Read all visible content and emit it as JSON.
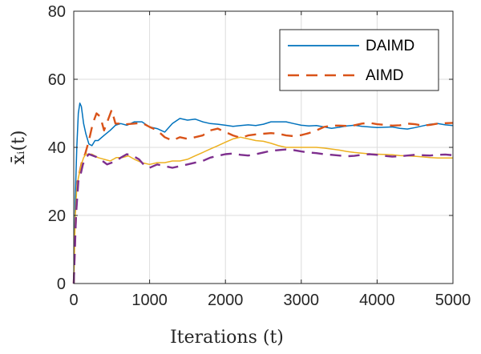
{
  "chart_data": {
    "type": "line",
    "xlabel": "Iterations (t)",
    "ylabel": "x̄ᵢ(t)",
    "xlim": [
      0,
      5000
    ],
    "ylim": [
      0,
      80
    ],
    "xticks": [
      "0",
      "1000",
      "2000",
      "3000",
      "4000",
      "5000"
    ],
    "yticks": [
      "0",
      "20",
      "40",
      "60",
      "80"
    ],
    "grid": true,
    "legend_position": "top-right",
    "legend": [
      {
        "label": "DAIMD",
        "color": "#0072BD",
        "style": "solid"
      },
      {
        "label": "AIMD",
        "color": "#D95319",
        "style": "dashed"
      }
    ],
    "series": [
      {
        "legend_ref": 0,
        "color": "#0072BD",
        "style": "solid",
        "x": [
          0,
          20,
          40,
          60,
          80,
          100,
          130,
          160,
          200,
          240,
          280,
          320,
          400,
          480,
          550,
          620,
          700,
          800,
          900,
          1000,
          1100,
          1200,
          1300,
          1400,
          1500,
          1600,
          1700,
          1800,
          1900,
          2000,
          2100,
          2200,
          2300,
          2400,
          2500,
          2600,
          2700,
          2800,
          2900,
          3000,
          3100,
          3200,
          3300,
          3400,
          3500,
          3600,
          3700,
          3800,
          3900,
          4000,
          4100,
          4200,
          4300,
          4400,
          4500,
          4600,
          4700,
          4800,
          4900,
          5000
        ],
        "y": [
          0,
          25,
          40,
          50,
          53,
          52,
          47,
          44,
          41,
          40.5,
          42,
          42,
          43.5,
          45,
          46.5,
          47,
          46.5,
          47.5,
          47.5,
          46,
          45.5,
          44.5,
          47,
          48.5,
          48,
          48.3,
          47.5,
          47,
          46.8,
          46.5,
          46.2,
          46.4,
          46.6,
          46.4,
          46.8,
          47.5,
          47.5,
          47.5,
          47,
          46.5,
          46.3,
          46.4,
          46,
          45.6,
          45.9,
          46.3,
          46.5,
          46.2,
          46,
          45.8,
          45.9,
          46,
          45.6,
          45.4,
          45.8,
          46.3,
          46.8,
          47,
          46.6,
          46.4
        ]
      },
      {
        "color": "#D95319",
        "style": "dashed",
        "x": [
          0,
          20,
          50,
          80,
          110,
          150,
          200,
          250,
          300,
          350,
          400,
          450,
          500,
          550,
          600,
          650,
          700,
          800,
          900,
          1000,
          1100,
          1200,
          1300,
          1400,
          1500,
          1600,
          1700,
          1800,
          1900,
          2000,
          2100,
          2200,
          2300,
          2400,
          2500,
          2600,
          2700,
          2800,
          2900,
          3000,
          3100,
          3200,
          3300,
          3400,
          3500,
          3600,
          3700,
          3800,
          3900,
          4000,
          4100,
          4200,
          4300,
          4400,
          4500,
          4600,
          4700,
          4800,
          4900,
          5000
        ],
        "y": [
          0,
          15,
          30,
          33,
          36,
          38,
          42,
          47,
          50,
          49,
          45,
          48,
          51,
          47,
          47,
          46.5,
          46.8,
          47,
          47.2,
          46,
          45,
          43,
          42,
          43,
          42.5,
          43,
          43.5,
          45,
          45.5,
          44.5,
          43.5,
          42.8,
          43.5,
          43.8,
          44,
          44.2,
          44,
          43.5,
          43.3,
          43.6,
          44.2,
          45,
          46,
          46.4,
          46.4,
          46.3,
          46.5,
          47,
          47.2,
          46.8,
          46.6,
          46.4,
          46.5,
          47,
          46.8,
          46.4,
          46.6,
          47,
          47.1,
          47.2
        ]
      },
      {
        "color": "#EDB120",
        "style": "solid",
        "x": [
          0,
          20,
          40,
          60,
          80,
          100,
          130,
          160,
          200,
          240,
          280,
          320,
          400,
          480,
          560,
          640,
          720,
          800,
          900,
          1000,
          1100,
          1200,
          1300,
          1400,
          1500,
          1600,
          1700,
          1800,
          1900,
          2000,
          2100,
          2200,
          2300,
          2400,
          2500,
          2600,
          2700,
          2800,
          2900,
          3000,
          3100,
          3200,
          3300,
          3400,
          3500,
          3600,
          3700,
          3800,
          3900,
          4000,
          4100,
          4200,
          4300,
          4400,
          4500,
          4600,
          4700,
          4800,
          4900,
          5000
        ],
        "y": [
          0,
          20,
          28,
          31,
          33,
          35,
          37,
          38,
          38,
          38,
          37.5,
          37,
          36.5,
          36,
          37,
          37,
          37.5,
          36.5,
          35.5,
          35,
          35.5,
          35.5,
          36,
          36,
          36.5,
          37.5,
          38.5,
          39.5,
          40.5,
          41.5,
          42.5,
          43,
          42.5,
          42,
          41.8,
          41.2,
          40.5,
          40,
          40,
          40,
          40,
          40,
          39.8,
          39.5,
          39.2,
          38.8,
          38.5,
          38.3,
          38.1,
          38,
          37.9,
          37.8,
          37.6,
          37.5,
          37.4,
          37.2,
          37,
          36.9,
          36.9,
          36.9
        ]
      },
      {
        "color": "#7E2F8E",
        "style": "dashed",
        "x": [
          0,
          30,
          60,
          90,
          120,
          160,
          200,
          260,
          320,
          380,
          440,
          500,
          560,
          620,
          700,
          780,
          860,
          940,
          1000,
          1100,
          1200,
          1300,
          1400,
          1500,
          1600,
          1700,
          1800,
          1900,
          2000,
          2100,
          2200,
          2300,
          2400,
          2500,
          2600,
          2700,
          2800,
          2900,
          3000,
          3100,
          3200,
          3300,
          3400,
          3500,
          3600,
          3700,
          3800,
          3900,
          4000,
          4100,
          4200,
          4300,
          4400,
          4500,
          4600,
          4700,
          4800,
          4900,
          5000
        ],
        "y": [
          0,
          20,
          30,
          32,
          35,
          37,
          38,
          37.5,
          37,
          36,
          35,
          35.5,
          36,
          37,
          38,
          37.5,
          36.5,
          34.5,
          34,
          35,
          34.5,
          34,
          34.5,
          35,
          35.5,
          36,
          37,
          37.5,
          38,
          38.2,
          37.8,
          37.6,
          38,
          38.5,
          39,
          39.2,
          39.4,
          39.2,
          38.8,
          38.5,
          38.3,
          38,
          37.8,
          37.6,
          37.4,
          37.5,
          37.8,
          38,
          37.8,
          37.5,
          37.3,
          37.4,
          37.6,
          37.8,
          37.7,
          37.6,
          37.8,
          37.9,
          37.7
        ]
      }
    ]
  }
}
